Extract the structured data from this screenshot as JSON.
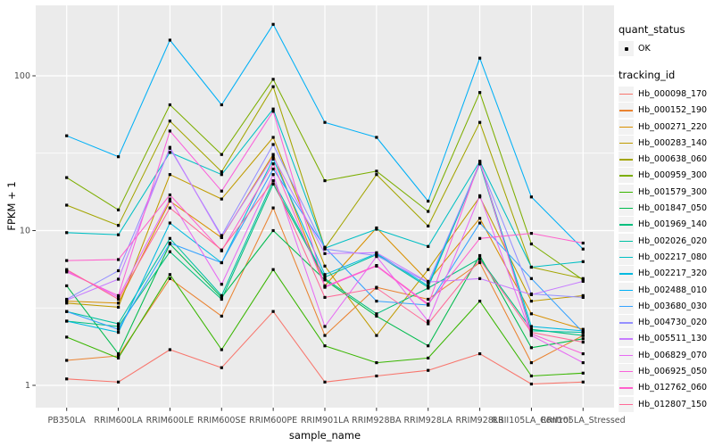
{
  "chart_data": {
    "type": "line",
    "title": "",
    "xlabel": "sample_name",
    "ylabel": "FPKM + 1",
    "y_scale": "log10",
    "y_ticks": [
      1,
      10,
      100
    ],
    "ylim": [
      0.93,
      260
    ],
    "grid": "ggplot-default",
    "legend_position": "right",
    "categories": [
      "PB350LA",
      "RRIM600LA",
      "RRIM600LE",
      "RRIM600SE",
      "RRIM600PE",
      "RRIM901LA",
      "RRIM928BA",
      "RRIM928LA",
      "RRIM928LB",
      "RRII105LA_Control",
      "RRII105LA_Stressed"
    ],
    "legends": [
      {
        "title": "quant_status",
        "entries": [
          {
            "label": "OK",
            "symbol": "black-point"
          }
        ]
      },
      {
        "title": "tracking_id",
        "entries_from": "series"
      }
    ],
    "series": [
      {
        "name": "Hb_000098_170",
        "color": "#F8766D",
        "values": [
          1.1,
          1.05,
          1.7,
          1.3,
          3.0,
          1.05,
          1.15,
          1.25,
          1.6,
          1.02,
          1.05
        ]
      },
      {
        "name": "Hb_000152_190",
        "color": "#EA8331",
        "values": [
          1.45,
          1.55,
          4.9,
          2.8,
          14.0,
          2.1,
          4.3,
          3.6,
          6.2,
          1.4,
          2.1
        ]
      },
      {
        "name": "Hb_000271_220",
        "color": "#D89000",
        "values": [
          3.5,
          3.4,
          15.5,
          9.0,
          31.0,
          4.4,
          10.4,
          4.7,
          12.0,
          2.9,
          2.3
        ]
      },
      {
        "name": "Hb_000283_140",
        "color": "#C09B00",
        "values": [
          3.4,
          3.2,
          23.0,
          16.0,
          40.0,
          5.9,
          2.1,
          5.6,
          16.5,
          3.5,
          3.8
        ]
      },
      {
        "name": "Hb_000638_060",
        "color": "#A3A500",
        "values": [
          14.6,
          10.8,
          51.0,
          24.0,
          85.0,
          7.7,
          23.0,
          10.7,
          50.0,
          5.8,
          4.9
        ]
      },
      {
        "name": "Hb_000959_300",
        "color": "#7CAE00",
        "values": [
          22.0,
          13.6,
          65.0,
          31.0,
          95.0,
          21.0,
          24.2,
          13.3,
          78.0,
          8.2,
          4.8
        ]
      },
      {
        "name": "Hb_001579_300",
        "color": "#39B600",
        "values": [
          2.05,
          1.5,
          5.2,
          1.7,
          5.6,
          1.8,
          1.4,
          1.5,
          3.5,
          1.15,
          1.2
        ]
      },
      {
        "name": "Hb_001847_050",
        "color": "#00BB4E",
        "values": [
          4.4,
          1.6,
          8.2,
          3.7,
          10.0,
          4.8,
          2.8,
          1.8,
          6.9,
          1.75,
          2.0
        ]
      },
      {
        "name": "Hb_001969_140",
        "color": "#00BF7D",
        "values": [
          2.6,
          2.4,
          7.3,
          3.6,
          20.0,
          4.9,
          2.9,
          4.25,
          6.6,
          2.3,
          2.1
        ]
      },
      {
        "name": "Hb_002026_020",
        "color": "#00C1A3",
        "values": [
          3.0,
          2.5,
          8.9,
          3.8,
          21.0,
          5.0,
          7.0,
          4.3,
          27.0,
          2.25,
          2.2
        ]
      },
      {
        "name": "Hb_002217_080",
        "color": "#00BFC4",
        "values": [
          9.7,
          9.4,
          32.0,
          23.0,
          61.0,
          7.7,
          10.2,
          7.9,
          28.0,
          5.8,
          6.3
        ]
      },
      {
        "name": "Hb_002217_320",
        "color": "#00BAE0",
        "values": [
          2.6,
          2.2,
          11.2,
          6.2,
          29.0,
          5.2,
          7.1,
          4.4,
          27.5,
          2.4,
          2.25
        ]
      },
      {
        "name": "Hb_002488_010",
        "color": "#00B0F6",
        "values": [
          41.0,
          30.0,
          170,
          65.0,
          215,
          50.0,
          40.0,
          15.5,
          130,
          16.5,
          7.6
        ]
      },
      {
        "name": "Hb_003680_030",
        "color": "#35A2FF",
        "values": [
          3.0,
          2.3,
          8.3,
          6.2,
          25.0,
          7.8,
          3.5,
          3.3,
          11.2,
          4.9,
          2.2
        ]
      },
      {
        "name": "Hb_004730_020",
        "color": "#9590FF",
        "values": [
          3.6,
          5.5,
          34.0,
          9.3,
          36.0,
          7.6,
          6.9,
          4.6,
          27.0,
          3.9,
          3.7
        ]
      },
      {
        "name": "Hb_005511_130",
        "color": "#C77CFF",
        "values": [
          3.55,
          4.85,
          34.5,
          9.1,
          30.0,
          7.1,
          7.2,
          4.65,
          4.9,
          3.85,
          4.7
        ]
      },
      {
        "name": "Hb_006829_070",
        "color": "#E76BF3",
        "values": [
          5.5,
          3.7,
          16.0,
          4.5,
          23.0,
          2.4,
          6.8,
          2.6,
          16.8,
          2.1,
          1.4
        ]
      },
      {
        "name": "Hb_006925_050",
        "color": "#FA62DB",
        "values": [
          5.4,
          3.8,
          44.0,
          18.0,
          59.0,
          4.3,
          5.9,
          3.3,
          28.0,
          2.15,
          1.6
        ]
      },
      {
        "name": "Hb_012762_060",
        "color": "#FF61CC",
        "values": [
          6.4,
          6.5,
          17.0,
          7.4,
          27.0,
          4.35,
          5.95,
          3.35,
          8.9,
          9.6,
          8.3
        ]
      },
      {
        "name": "Hb_012807_150",
        "color": "#FF6A98",
        "values": [
          5.6,
          3.6,
          14.0,
          7.5,
          21.0,
          3.7,
          4.25,
          2.5,
          6.5,
          2.2,
          1.9
        ]
      }
    ]
  },
  "style": {
    "panel_bg": "#EBEBEB",
    "grid_color": "#FFFFFF",
    "axis_text_color": "#4D4D4D",
    "tick_color": "#333333",
    "point_color": "#000000",
    "legend_key_bg": "#F2F2F2"
  }
}
